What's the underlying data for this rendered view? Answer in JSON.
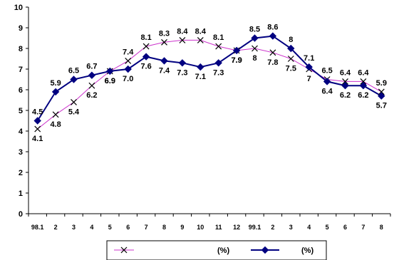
{
  "chart_data": {
    "type": "line",
    "categories": [
      "98.1",
      "2",
      "3",
      "4",
      "5",
      "6",
      "7",
      "8",
      "9",
      "10",
      "11",
      "12",
      "99.1",
      "2",
      "3",
      "4",
      "5",
      "6",
      "7",
      "8"
    ],
    "ylim": [
      0,
      10
    ],
    "yticks": [
      0,
      1,
      2,
      3,
      4,
      5,
      6,
      7,
      8,
      9,
      10
    ],
    "grid": false,
    "legend_position": "bottom",
    "series": [
      {
        "name": "(%)",
        "color": "#cc33cc",
        "marker_color": "#000000",
        "marker": "x",
        "values": [
          4.1,
          4.8,
          5.4,
          6.2,
          6.9,
          7.4,
          8.1,
          8.3,
          8.4,
          8.4,
          8.1,
          7.9,
          8,
          7.8,
          7.5,
          7,
          6.5,
          6.4,
          6.4,
          5.9
        ],
        "labels": [
          "4.1",
          "4.8",
          "5.4",
          "6.2",
          "6.9",
          "7.4",
          "8.1",
          "8.3",
          "8.4",
          "8.4",
          "8.1",
          "7.9",
          "8",
          "7.8",
          "7.5",
          "7",
          "6.5",
          "6.4",
          "6.4",
          "5.9"
        ]
      },
      {
        "name": "(%)",
        "color": "#000080",
        "marker_color": "#000080",
        "marker": "diamond",
        "values": [
          4.5,
          5.9,
          6.5,
          6.7,
          6.9,
          7.0,
          7.6,
          7.4,
          7.3,
          7.1,
          7.3,
          7.9,
          8.5,
          8.6,
          8,
          7.1,
          6.4,
          6.2,
          6.2,
          5.7
        ],
        "labels": [
          "4.5",
          "5.9",
          "6.5",
          "6.7",
          "6.9",
          "7.0",
          "7.6",
          "7.4",
          "7.3",
          "7.1",
          "7.3",
          "7.9",
          "8.5",
          "8.6",
          "8",
          "7.1",
          "6.4",
          "6.2",
          "6.2",
          "5.7"
        ]
      }
    ]
  }
}
